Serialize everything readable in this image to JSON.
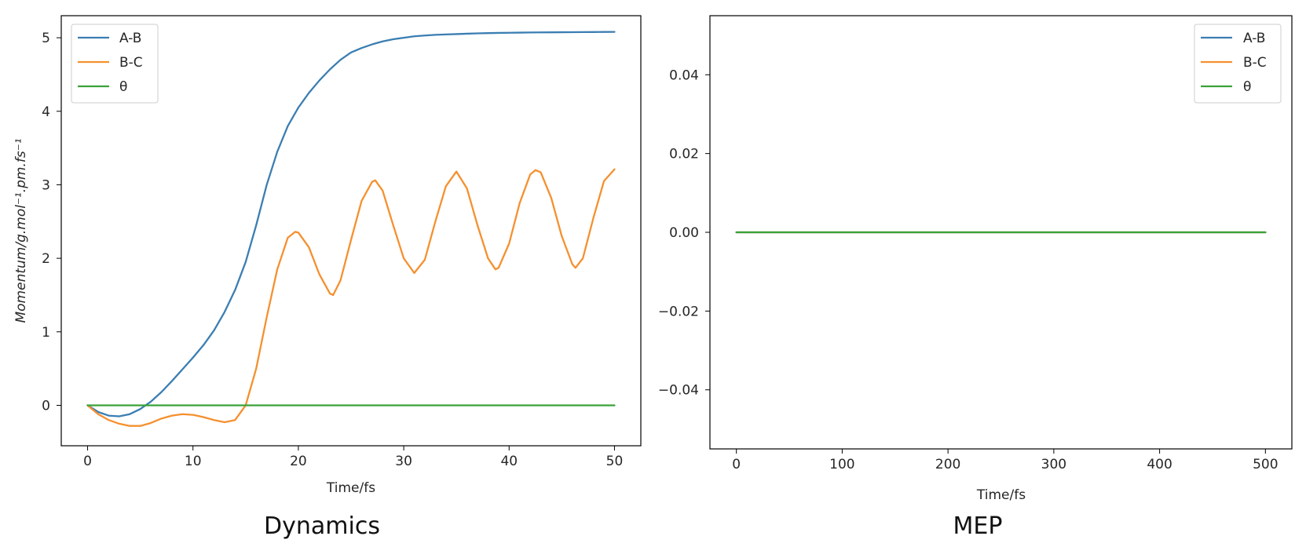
{
  "colors": {
    "ab": "#3b7eb2",
    "bc": "#f5902f",
    "theta": "#3aa23a"
  },
  "legend": [
    "A-B",
    "B-C",
    "θ"
  ],
  "chart_data": [
    {
      "type": "line",
      "caption": "Dynamics",
      "xlabel": "Time/fs",
      "ylabel": "Momentum/g.mol⁻¹.pm.fs⁻¹",
      "xlim": [
        -2.5,
        52.5
      ],
      "ylim": [
        -0.55,
        5.3
      ],
      "xticks": [
        0,
        10,
        20,
        30,
        40,
        50
      ],
      "xtick_labels": [
        "0",
        "10",
        "20",
        "30",
        "40",
        "50"
      ],
      "yticks": [
        0,
        1,
        2,
        3,
        4,
        5
      ],
      "ytick_labels": [
        "0",
        "1",
        "2",
        "3",
        "4",
        "5"
      ],
      "legend_position": "upper left",
      "grid": false,
      "series": [
        {
          "name": "A-B",
          "color_key": "ab",
          "x": [
            0,
            1,
            2,
            3,
            4,
            5,
            6,
            7,
            8,
            9,
            10,
            11,
            12,
            13,
            14,
            15,
            16,
            17,
            18,
            19,
            20,
            21,
            22,
            23,
            24,
            25,
            26,
            27,
            28,
            29,
            30,
            31,
            32,
            33,
            34,
            35,
            36,
            37,
            38,
            39,
            40,
            41,
            42,
            43,
            44,
            45,
            46,
            47,
            48,
            49,
            50
          ],
          "y": [
            0,
            -0.09,
            -0.14,
            -0.15,
            -0.12,
            -0.05,
            0.05,
            0.18,
            0.33,
            0.49,
            0.65,
            0.82,
            1.02,
            1.27,
            1.57,
            1.95,
            2.45,
            3.0,
            3.45,
            3.8,
            4.05,
            4.25,
            4.42,
            4.57,
            4.7,
            4.8,
            4.86,
            4.91,
            4.95,
            4.98,
            5.0,
            5.02,
            5.03,
            5.04,
            5.045,
            5.05,
            5.055,
            5.06,
            5.063,
            5.066,
            5.068,
            5.07,
            5.072,
            5.073,
            5.074,
            5.075,
            5.076,
            5.077,
            5.078,
            5.079,
            5.08
          ]
        },
        {
          "name": "B-C",
          "color_key": "bc",
          "x": [
            0,
            1,
            2,
            3,
            4,
            5,
            6,
            7,
            8,
            9,
            10,
            11,
            12,
            13,
            14,
            15,
            16,
            17,
            18,
            19,
            19.7,
            20,
            21,
            22,
            23,
            23.3,
            24,
            25,
            26,
            27,
            27.3,
            28,
            29,
            30,
            31,
            32,
            33,
            34,
            35,
            35,
            36,
            37,
            38,
            38.7,
            39,
            40,
            41,
            42,
            42.5,
            43,
            44,
            45,
            46,
            46.3,
            47,
            48,
            49,
            50
          ],
          "y": [
            0,
            -0.12,
            -0.2,
            -0.25,
            -0.28,
            -0.28,
            -0.24,
            -0.18,
            -0.14,
            -0.12,
            -0.13,
            -0.16,
            -0.2,
            -0.23,
            -0.2,
            0.0,
            0.5,
            1.2,
            1.85,
            2.28,
            2.36,
            2.35,
            2.15,
            1.78,
            1.52,
            1.5,
            1.7,
            2.25,
            2.78,
            3.04,
            3.06,
            2.92,
            2.45,
            2.0,
            1.8,
            1.98,
            2.5,
            2.98,
            3.18,
            3.18,
            2.95,
            2.45,
            2.0,
            1.85,
            1.87,
            2.2,
            2.75,
            3.14,
            3.2,
            3.17,
            2.82,
            2.3,
            1.92,
            1.87,
            2.0,
            2.55,
            3.05,
            3.21
          ]
        },
        {
          "name": "θ",
          "color_key": "theta",
          "x": [
            0,
            50
          ],
          "y": [
            0,
            0
          ]
        }
      ]
    },
    {
      "type": "line",
      "caption": "MEP",
      "xlabel": "Time/fs",
      "ylabel": "",
      "xlim": [
        -25,
        525
      ],
      "ylim": [
        -0.055,
        0.055
      ],
      "xticks": [
        0,
        100,
        200,
        300,
        400,
        500
      ],
      "xtick_labels": [
        "0",
        "100",
        "200",
        "300",
        "400",
        "500"
      ],
      "yticks": [
        0.04,
        0.02,
        0.0,
        -0.02,
        -0.04
      ],
      "ytick_labels": [
        "0.04",
        "0.02",
        "0.00",
        "−0.02",
        "−0.04"
      ],
      "legend_position": "upper right",
      "grid": false,
      "series": [
        {
          "name": "A-B",
          "color_key": "ab",
          "x": [
            0,
            500
          ],
          "y": [
            0,
            0
          ]
        },
        {
          "name": "B-C",
          "color_key": "bc",
          "x": [
            0,
            500
          ],
          "y": [
            0,
            0
          ]
        },
        {
          "name": "θ",
          "color_key": "theta",
          "x": [
            0,
            500
          ],
          "y": [
            0,
            0
          ]
        }
      ]
    }
  ]
}
